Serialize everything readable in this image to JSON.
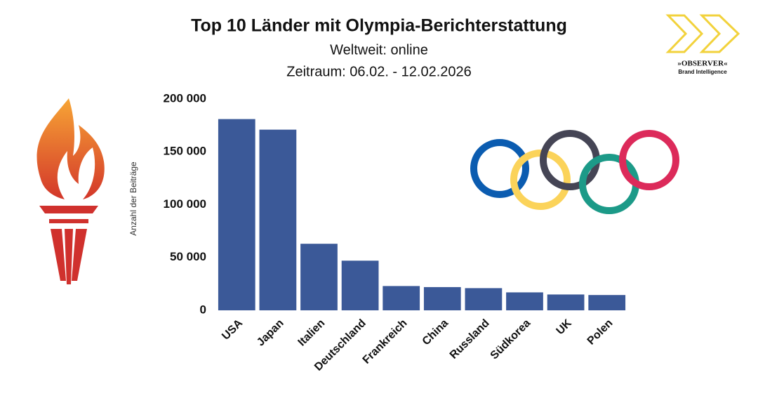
{
  "chart_data": {
    "type": "bar",
    "title": "Top 10 Länder mit Olympia-Berichterstattung",
    "subtitle": [
      "Weltweit: online",
      "Zeitraum: 06.02. - 12.02.2026"
    ],
    "y_label": "Anzahl der Beiträge",
    "categories": [
      "USA",
      "Japan",
      "Italien",
      "Deutschland",
      "Frankreich",
      "China",
      "Russland",
      "Südkorea",
      "UK",
      "Polen"
    ],
    "values": [
      181000,
      171000,
      63000,
      47000,
      23000,
      22000,
      21000,
      17000,
      15000,
      14500
    ],
    "color": "#3b5998",
    "ylim": [
      0,
      200000
    ],
    "yticks": [
      0,
      {
        "value": 50000,
        "label": "50 000"
      },
      {
        "value": 100000,
        "label": "100 000"
      },
      {
        "value": 150000,
        "label": "150 000"
      },
      {
        "value": 200000,
        "label": "200 000"
      }
    ],
    "grid": false
  },
  "logo": {
    "name": "»OBSERVER«",
    "tagline": "Brand Intelligence"
  }
}
